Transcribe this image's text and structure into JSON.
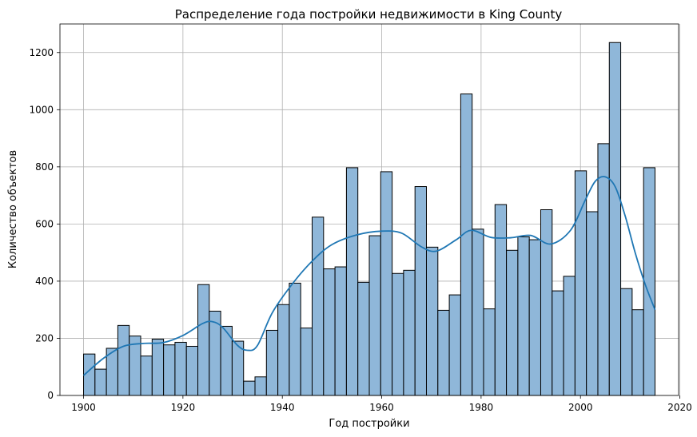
{
  "chart_data": {
    "type": "bar",
    "title": "Распределение года постройки недвижимости в King County",
    "xlabel": "Год постройки",
    "ylabel": "Количество объектов",
    "xlim": [
      1895.25,
      2019.75
    ],
    "ylim": [
      0,
      1300
    ],
    "xticks": [
      1900,
      1920,
      1940,
      1960,
      1980,
      2000,
      2020
    ],
    "yticks": [
      0,
      200,
      400,
      600,
      800,
      1000,
      1200
    ],
    "grid": true,
    "bin_start": 1900,
    "bin_width": 2.3,
    "values": [
      145,
      92,
      165,
      245,
      208,
      138,
      197,
      177,
      186,
      172,
      388,
      295,
      242,
      190,
      50,
      65,
      228,
      318,
      393,
      236,
      624,
      443,
      450,
      797,
      396,
      559,
      783,
      427,
      438,
      731,
      519,
      298,
      352,
      1055,
      582,
      303,
      668,
      508,
      555,
      545,
      650,
      366,
      417,
      786,
      643,
      881,
      1235,
      374,
      300,
      797
    ],
    "kde": {
      "x": [
        1900,
        1904,
        1908,
        1912,
        1916,
        1920,
        1924,
        1926,
        1928,
        1931,
        1933,
        1935,
        1938,
        1942,
        1946,
        1950,
        1955,
        1960,
        1964,
        1968,
        1971,
        1975,
        1978,
        1982,
        1986,
        1990,
        1994,
        1998,
        2001,
        2003,
        2005,
        2007,
        2009,
        2011,
        2013,
        2015
      ],
      "y": [
        70,
        130,
        172,
        182,
        185,
        210,
        252,
        258,
        238,
        175,
        158,
        175,
        290,
        390,
        470,
        528,
        562,
        575,
        568,
        520,
        505,
        545,
        578,
        553,
        552,
        560,
        530,
        578,
        685,
        750,
        765,
        730,
        628,
        500,
        390,
        300
      ]
    },
    "colors": {
      "bar_fill": "#8fb7d9",
      "bar_edge": "#000000",
      "kde_line": "#1f77b4",
      "grid": "#b0b0b0"
    }
  }
}
